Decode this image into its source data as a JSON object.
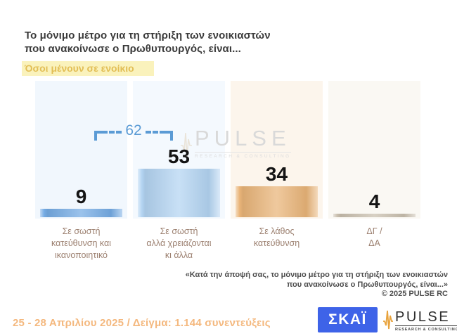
{
  "slide": {
    "title": "Το μόνιμο μέτρο για τη στήριξη των ενοικιαστών\nπου ανακοίνωσε ο Πρωθυπουργός, είναι...",
    "highlight": "Όσοι μένουν σε ενοίκιο",
    "source_note": "«Κατά την άποψή σας, το μόνιμο μέτρο για τη στήριξη των ενοικιαστών\nπου ανακοίνωσε ο Πρωθυπουργός, είναι...»\n©  2025  PULSE RC",
    "fieldwork": "25 - 28 Απριλίου 2025  /  Δείγμα:  1.144 συνεντεύξεις"
  },
  "chart_data": {
    "type": "bar",
    "title": "Το μόνιμο μέτρο για τη στήριξη των ενοικιαστών που ανακοίνωσε ο Πρωθυπουργός, είναι...",
    "subtitle": "Όσοι μένουν σε ενοίκιο",
    "categories": [
      "Σε σωστή\nκατεύθυνση και\nικανοποιητικό",
      "Σε σωστή\nαλλά χρειάζονται\nκι άλλα",
      "Σε λάθος\nκατεύθυνση",
      "ΔΓ /\nΔΑ"
    ],
    "values": [
      9,
      53,
      34,
      4
    ],
    "bracket": {
      "label": "62",
      "value": 62,
      "covers_categories": [
        0,
        1
      ],
      "color": "#5B9BD5"
    },
    "bar_colors": [
      "#74ABE4",
      "#B3D4F2",
      "#E9B478",
      "#C9BFAE"
    ],
    "panel_colors": [
      "#F1F7FD",
      "#F4F9FE",
      "#FCF5EC",
      "#FAF8F3"
    ],
    "value_label_color": "#141414",
    "category_label_color": "#9C8070",
    "ylim": [
      0,
      150
    ],
    "grid": false,
    "legend": false
  },
  "watermark": {
    "brand": "PULSE",
    "sub": "RESEARCH & CONSULTING"
  },
  "logos": {
    "skai": {
      "text": "ΣΚΑΪ",
      "bg": "#3E63E8"
    },
    "pulse": {
      "brand": "PULSE",
      "sub": "RESEARCH & CONSULTING",
      "accent": "#E8A33D"
    }
  }
}
